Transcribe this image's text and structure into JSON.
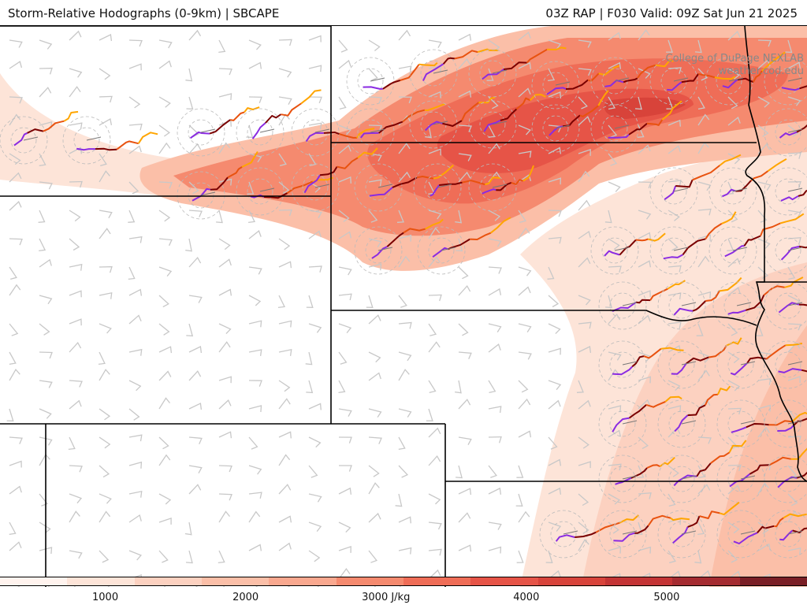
{
  "header": {
    "left_title": "Storm-Relative Hodographs (0-9km) | SBCAPE",
    "right_title": "03Z RAP | F030 Valid: 09Z Sat Jun 21 2025"
  },
  "credit": {
    "line1": "College of DuPage NEXLAB",
    "line2": "weather.cod.edu"
  },
  "map": {
    "fields": [
      "Surface-based CAPE (shaded)",
      "0-9km storm-relative hodographs",
      "wind barbs"
    ],
    "colors": {
      "cape_low": "#fde4d8",
      "cape_mid": "#f58a6f",
      "cape_high": "#d8433a",
      "border": "#000000",
      "barb": "#c8c8c8",
      "hodo_layer_1": "#8a2be2",
      "hodo_layer_2": "#7a0000",
      "hodo_layer_3": "#e8520f",
      "hodo_layer_4": "#ffa500"
    }
  },
  "colorbar": {
    "unit": "J/kg",
    "ticks": [
      {
        "value": 1000,
        "label": "1000"
      },
      {
        "value": 2000,
        "label": "2000"
      },
      {
        "value": 3000,
        "label": "3000 J/kg"
      },
      {
        "value": 4000,
        "label": "4000"
      },
      {
        "value": 5000,
        "label": "5000"
      }
    ],
    "range": [
      250,
      6000
    ],
    "colors": [
      "#fff3ee",
      "#fde4d8",
      "#fcd1c0",
      "#fbbfa8",
      "#f9a88f",
      "#f58a6f",
      "#ef6d57",
      "#e65447",
      "#d8433a",
      "#c43434",
      "#a52b30",
      "#7a1e25"
    ]
  }
}
